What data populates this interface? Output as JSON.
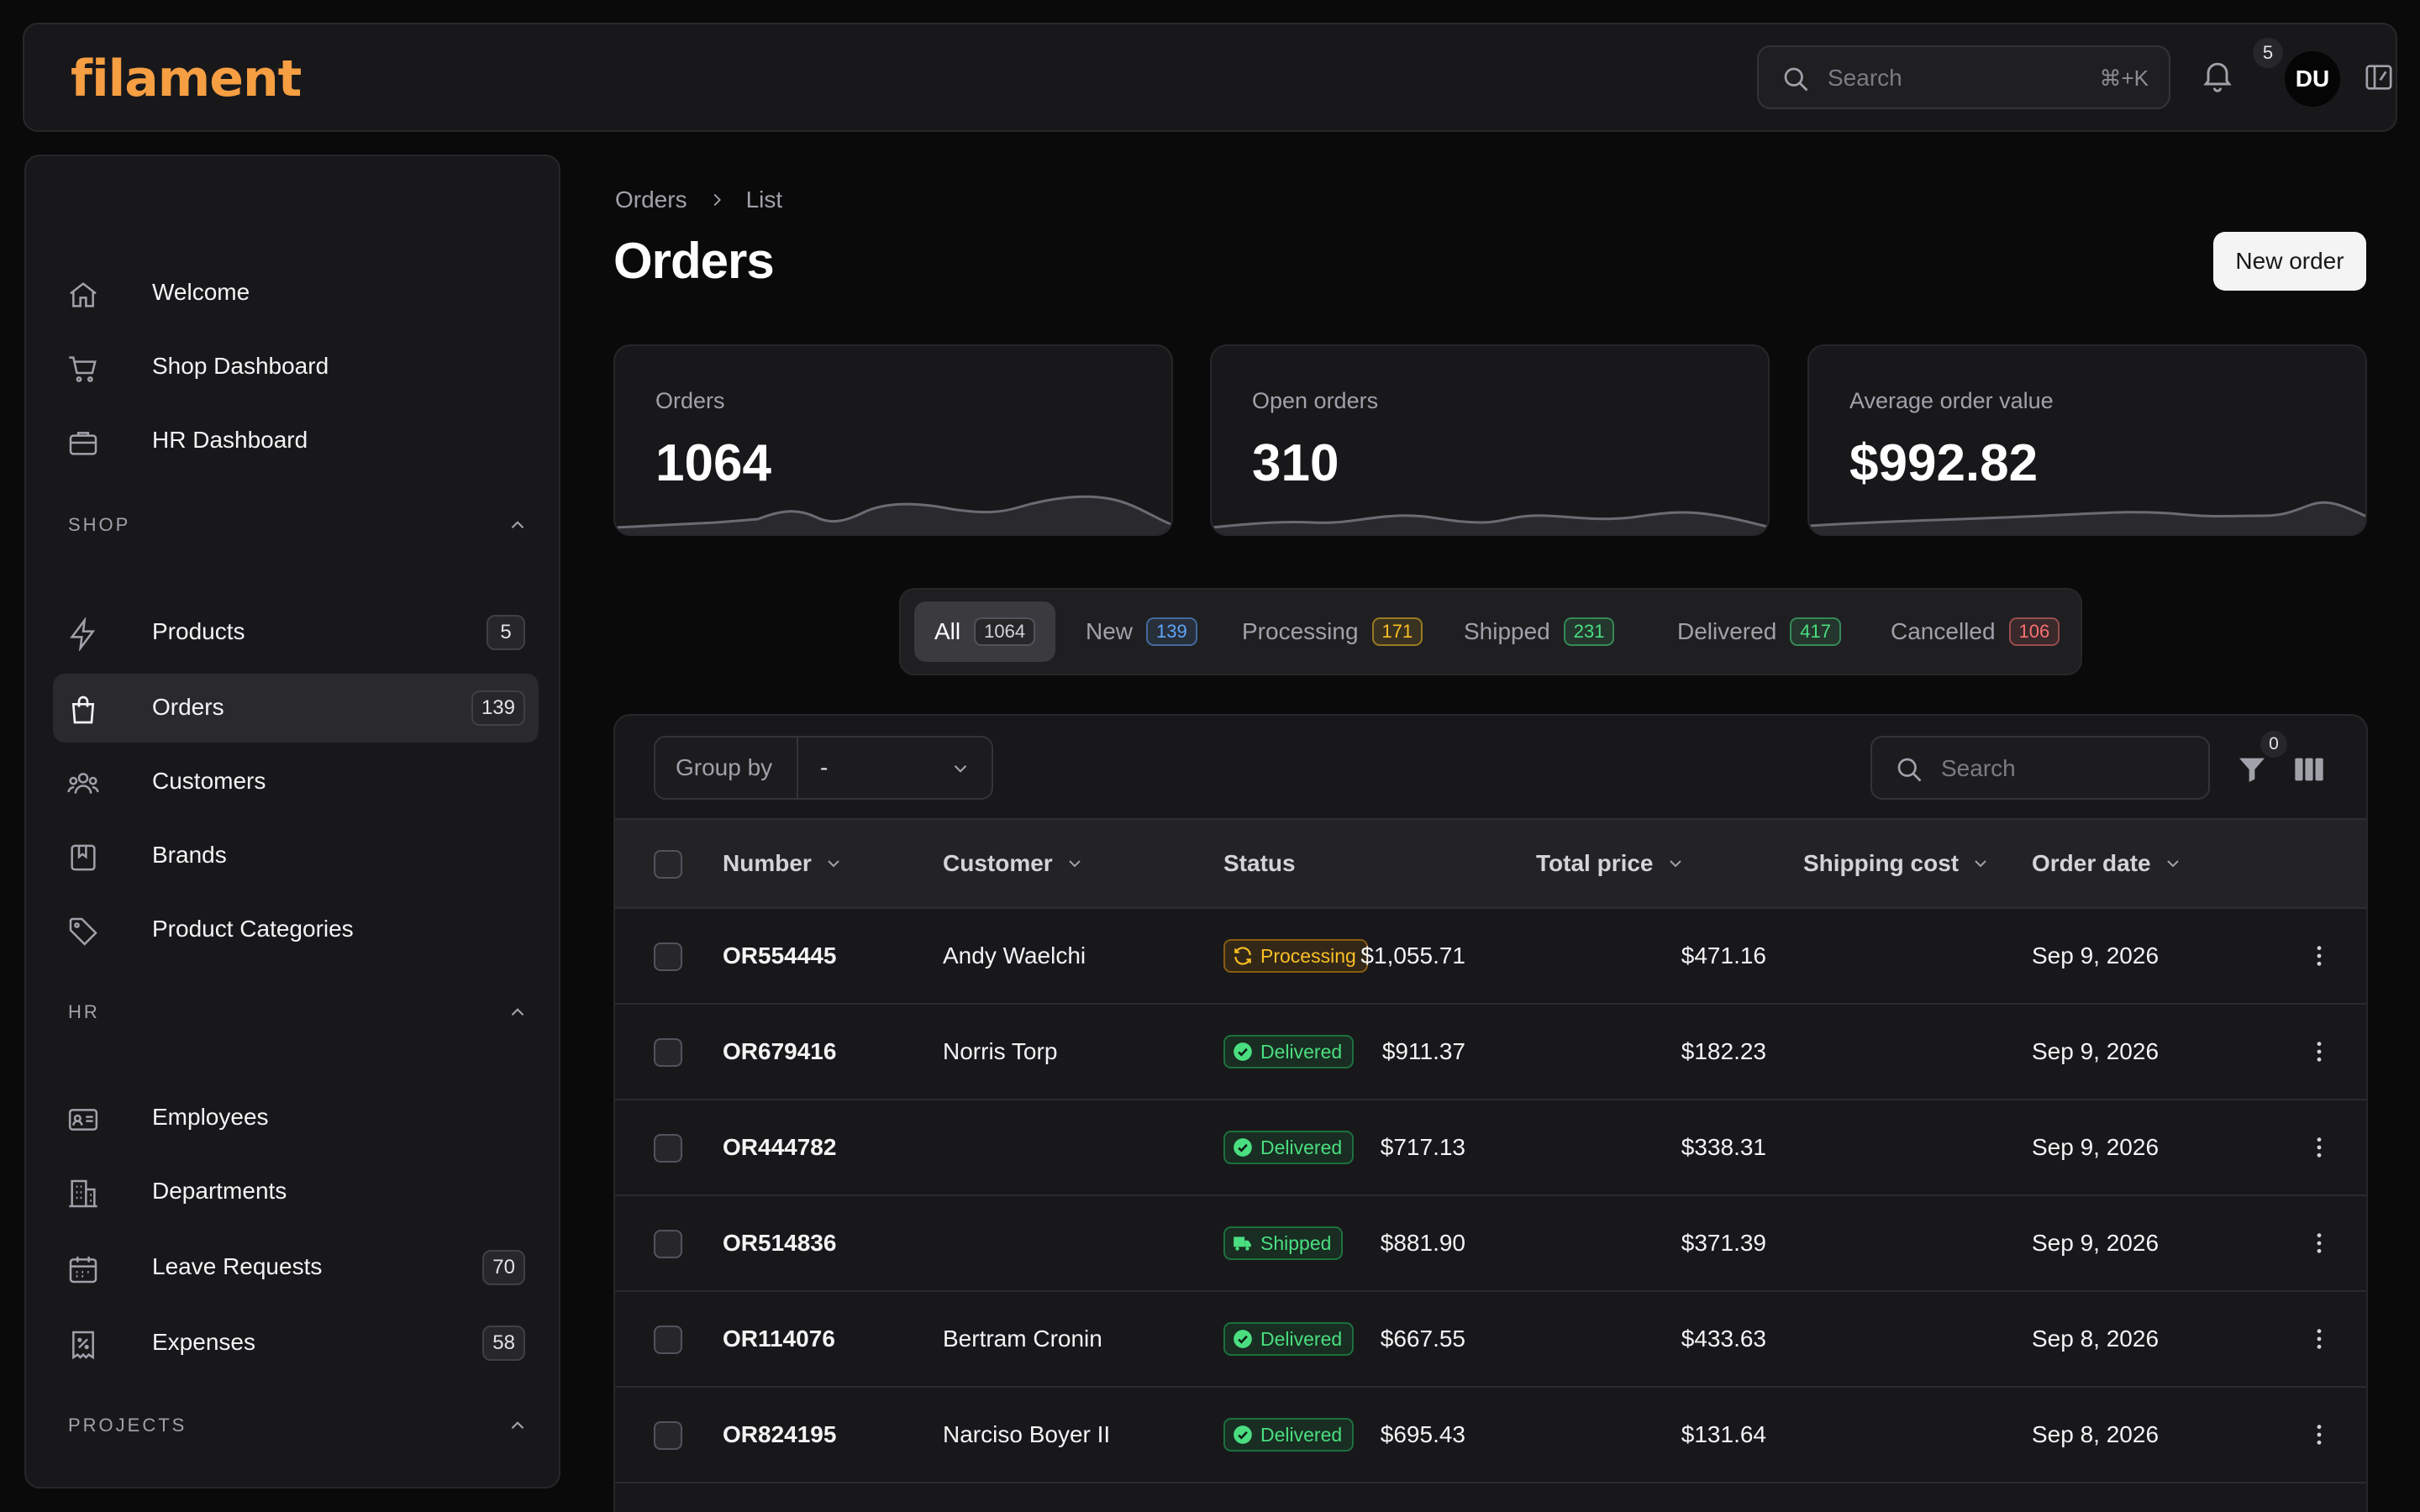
{
  "app": {
    "logo": "filament"
  },
  "topbar": {
    "search_placeholder": "Search",
    "search_shortcut": "⌘+K",
    "notifications_count": "5",
    "avatar_initials": "DU"
  },
  "sidebar": {
    "top_items": [
      {
        "label": "Welcome",
        "icon": "home-icon"
      },
      {
        "label": "Shop Dashboard",
        "icon": "cart-icon"
      },
      {
        "label": "HR Dashboard",
        "icon": "briefcase-icon"
      }
    ],
    "groups": {
      "shop": {
        "label": "SHOP",
        "items": [
          {
            "label": "Products",
            "icon": "bolt-icon",
            "count": "5"
          },
          {
            "label": "Orders",
            "icon": "shopping-bag-icon",
            "count": "139",
            "active": true
          },
          {
            "label": "Customers",
            "icon": "users-icon"
          },
          {
            "label": "Brands",
            "icon": "bookmark-square-icon"
          },
          {
            "label": "Product Categories",
            "icon": "tag-icon"
          }
        ]
      },
      "hr": {
        "label": "HR",
        "items": [
          {
            "label": "Employees",
            "icon": "id-card-icon"
          },
          {
            "label": "Departments",
            "icon": "building-icon"
          },
          {
            "label": "Leave Requests",
            "icon": "calendar-icon",
            "count": "70"
          },
          {
            "label": "Expenses",
            "icon": "receipt-percent-icon",
            "count": "58"
          }
        ]
      },
      "projects": {
        "label": "PROJECTS"
      }
    }
  },
  "breadcrumb": [
    "Orders",
    "List"
  ],
  "page": {
    "title": "Orders",
    "new_button": "New order"
  },
  "stats": [
    {
      "label": "Orders",
      "value": "1064"
    },
    {
      "label": "Open orders",
      "value": "310"
    },
    {
      "label": "Average order value",
      "value": "$992.82"
    }
  ],
  "tabs": [
    {
      "label": "All",
      "count": "1064",
      "active": true,
      "color": "#a1a1aa"
    },
    {
      "label": "New",
      "count": "139",
      "color": "#60a5fa"
    },
    {
      "label": "Processing",
      "count": "171",
      "color": "#fbbf24"
    },
    {
      "label": "Shipped",
      "count": "231",
      "color": "#4ade80"
    },
    {
      "label": "Delivered",
      "count": "417",
      "color": "#4ade80"
    },
    {
      "label": "Cancelled",
      "count": "106",
      "color": "#f87171"
    }
  ],
  "table": {
    "group_by_label": "Group by",
    "group_by_value": "-",
    "search_placeholder": "Search",
    "filter_count": "0",
    "columns": [
      "Number",
      "Customer",
      "Status",
      "Total price",
      "Shipping cost",
      "Order date"
    ],
    "rows": [
      {
        "number": "OR554445",
        "customer": "Andy Waelchi",
        "status": "Processing",
        "total": "$1,055.71",
        "shipping": "$471.16",
        "date": "Sep 9, 2026"
      },
      {
        "number": "OR679416",
        "customer": "Norris Torp",
        "status": "Delivered",
        "total": "$911.37",
        "shipping": "$182.23",
        "date": "Sep 9, 2026"
      },
      {
        "number": "OR444782",
        "customer": "",
        "status": "Delivered",
        "total": "$717.13",
        "shipping": "$338.31",
        "date": "Sep 9, 2026"
      },
      {
        "number": "OR514836",
        "customer": "",
        "status": "Shipped",
        "total": "$881.90",
        "shipping": "$371.39",
        "date": "Sep 9, 2026"
      },
      {
        "number": "OR114076",
        "customer": "Bertram Cronin",
        "status": "Delivered",
        "total": "$667.55",
        "shipping": "$433.63",
        "date": "Sep 8, 2026"
      },
      {
        "number": "OR824195",
        "customer": "Narciso Boyer II",
        "status": "Delivered",
        "total": "$695.43",
        "shipping": "$131.64",
        "date": "Sep 8, 2026"
      }
    ]
  },
  "colors": {
    "accent": "#f59e42",
    "processing": "#fbbf24",
    "delivered": "#4ade80",
    "cancelled": "#f87171",
    "new": "#60a5fa"
  }
}
